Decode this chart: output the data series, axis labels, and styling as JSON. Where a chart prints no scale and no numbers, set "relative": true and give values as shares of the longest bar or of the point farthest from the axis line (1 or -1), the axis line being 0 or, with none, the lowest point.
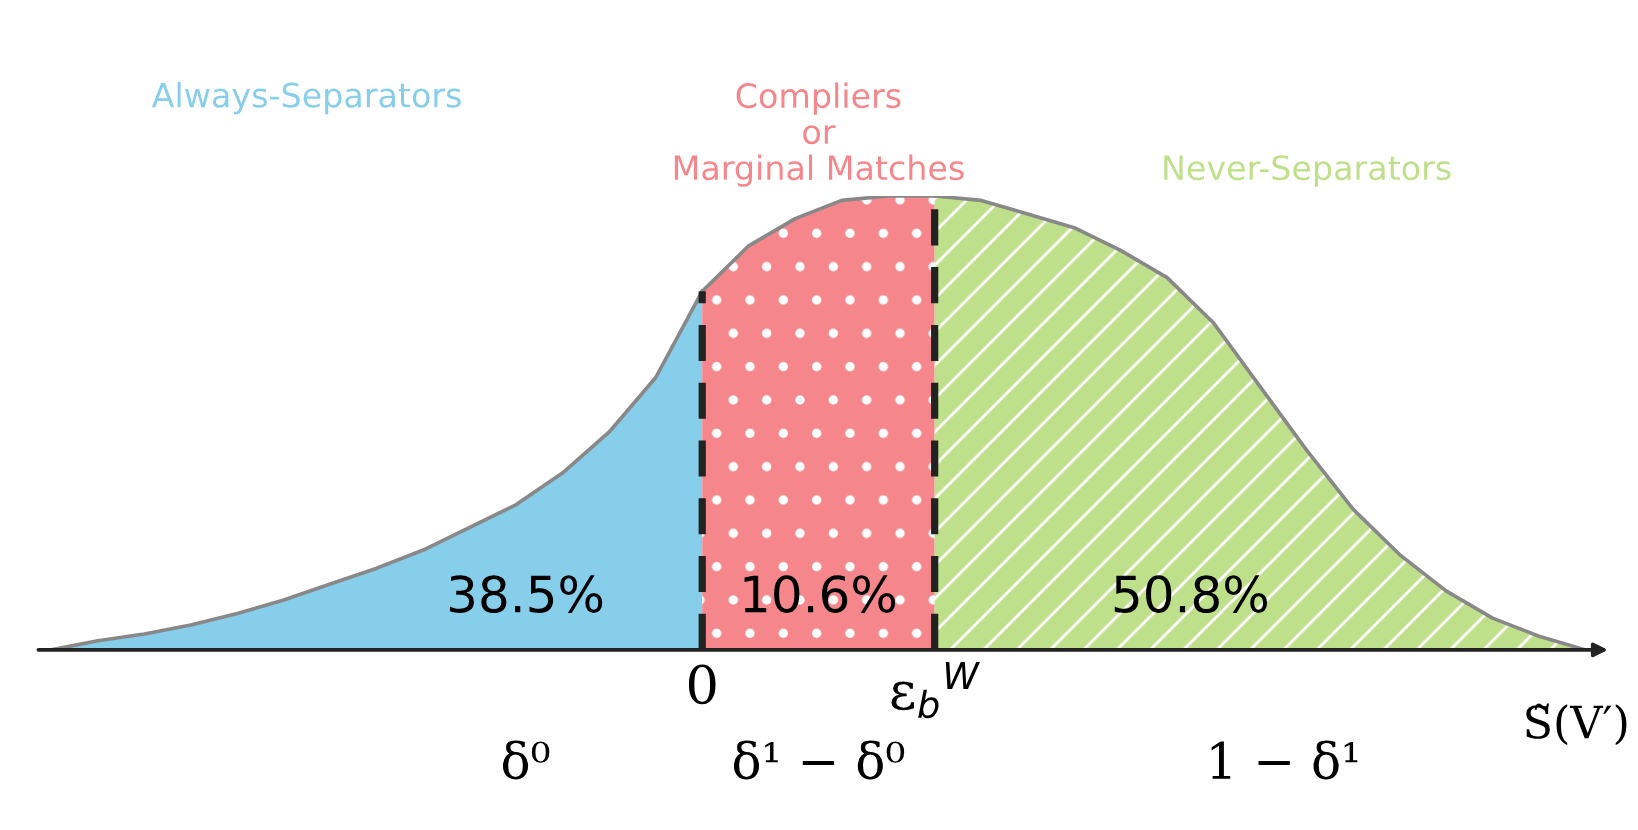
{
  "chart_data": {
    "type": "area",
    "relative": true,
    "xlabel": "S̃(V′)",
    "categories": [
      null,
      null,
      null,
      null,
      null,
      null,
      null,
      null,
      null,
      null,
      null,
      null,
      null,
      null,
      null,
      null,
      null,
      null,
      null,
      null,
      null,
      null,
      null,
      null,
      null,
      null,
      null,
      null,
      null,
      null,
      null,
      null,
      null,
      null
    ],
    "series": [
      {
        "name": "Always-Separators",
        "color": "#87ceeb",
        "values": [
          0.0,
          0.02,
          0.035,
          0.055,
          0.08,
          0.11,
          0.145,
          0.18,
          0.22,
          0.27,
          0.32,
          0.39,
          0.48,
          0.6,
          0.79,
          null,
          null,
          null,
          null,
          null,
          null,
          null,
          null,
          null,
          null,
          null,
          null,
          null,
          null,
          null,
          null,
          null,
          null,
          null
        ]
      },
      {
        "name": "Compliers\nor\nMarginal Matches",
        "color": "#f4868c",
        "values": [
          null,
          null,
          null,
          null,
          null,
          null,
          null,
          null,
          null,
          null,
          null,
          null,
          null,
          null,
          0.79,
          0.89,
          0.95,
          0.99,
          1.0,
          1.0,
          null,
          null,
          null,
          null,
          null,
          null,
          null,
          null,
          null,
          null,
          null,
          null,
          null,
          null
        ]
      },
      {
        "name": "Never-Separators",
        "color": "#bfe08a",
        "values": [
          null,
          null,
          null,
          null,
          null,
          null,
          null,
          null,
          null,
          null,
          null,
          null,
          null,
          null,
          null,
          null,
          null,
          null,
          null,
          1.0,
          0.99,
          0.96,
          0.93,
          0.88,
          0.82,
          0.72,
          0.58,
          0.44,
          0.31,
          0.21,
          0.13,
          0.07,
          0.03,
          0.0
        ]
      }
    ],
    "annotations": [
      "38.5%",
      "10.6%",
      "50.8%",
      "0",
      "ε$_{b}$$^{W}$",
      "δ⁰",
      "δ¹ − δ⁰",
      "1 − δ¹"
    ],
    "legend": false
  }
}
